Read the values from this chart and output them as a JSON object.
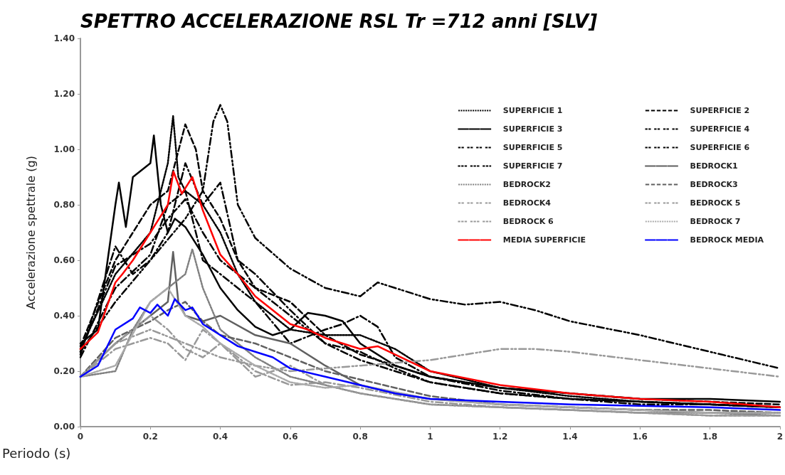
{
  "chart_data": {
    "type": "line",
    "title": "SPETTRO ACCELERAZIONE RSL Tr =712 anni [SLV]",
    "xlabel": "Periodo (s)",
    "ylabel": "Accelerazione spettrale (g)",
    "xlim": [
      0,
      2
    ],
    "xticks": [
      0,
      0.2,
      0.4,
      0.6,
      0.8,
      1,
      1.2,
      1.4,
      1.6,
      1.8,
      2
    ],
    "ylim": [
      0,
      1.4
    ],
    "yticks": [
      {
        "value": 0,
        "label": "0.00"
      },
      {
        "value": 0.2,
        "label": "0.20"
      },
      {
        "value": 0.4,
        "label": "0.40"
      },
      {
        "value": 0.6,
        "label": "0.60"
      },
      {
        "value": 0.8,
        "label": "0.80"
      },
      {
        "value": 1,
        "label": "1.00"
      },
      {
        "value": 1.2,
        "label": "1.20"
      },
      {
        "value": 1.4,
        "label": "1.40"
      }
    ],
    "grid": false,
    "legend": "top right",
    "marker": "none",
    "series": [
      {
        "name": "SUPERFICIE 1",
        "color": "#000000",
        "line_style": "dotted",
        "x": [
          0,
          0.1,
          0.2,
          0.25,
          0.265,
          0.28,
          0.3,
          0.35,
          0.4,
          0.45,
          0.5,
          0.6,
          0.7,
          0.8,
          0.9,
          1,
          1.2,
          1.4,
          1.6,
          1.8,
          2
        ],
        "values": [
          0.28,
          0.55,
          0.7,
          0.95,
          1.12,
          0.9,
          0.85,
          0.8,
          0.7,
          0.55,
          0.45,
          0.35,
          0.33,
          0.33,
          0.28,
          0.2,
          0.14,
          0.11,
          0.09,
          0.08,
          0.07
        ]
      },
      {
        "name": "SUPERFICIE 2",
        "color": "#000000",
        "line_style": "dashed",
        "x": [
          0,
          0.1,
          0.2,
          0.25,
          0.3,
          0.33,
          0.35,
          0.4,
          0.45,
          0.5,
          0.6,
          0.7,
          0.8,
          0.9,
          1,
          1.2,
          1.4,
          1.6,
          1.8,
          2
        ],
        "values": [
          0.29,
          0.6,
          0.8,
          0.85,
          1.09,
          1.0,
          0.85,
          0.75,
          0.6,
          0.5,
          0.45,
          0.33,
          0.26,
          0.22,
          0.18,
          0.14,
          0.12,
          0.1,
          0.09,
          0.08
        ]
      },
      {
        "name": "SUPERFICIE 3",
        "color": "#000000",
        "line_style": "solid",
        "x": [
          0,
          0.05,
          0.1,
          0.11,
          0.13,
          0.15,
          0.2,
          0.21,
          0.23,
          0.25,
          0.27,
          0.3,
          0.35,
          0.4,
          0.45,
          0.5,
          0.55,
          0.6,
          0.65,
          0.7,
          0.75,
          0.8,
          0.9,
          1,
          1.2,
          1.4,
          1.6,
          1.8,
          2
        ],
        "values": [
          0.3,
          0.35,
          0.8,
          0.88,
          0.72,
          0.9,
          0.95,
          1.05,
          0.8,
          0.7,
          0.75,
          0.72,
          0.62,
          0.5,
          0.42,
          0.36,
          0.33,
          0.35,
          0.41,
          0.4,
          0.38,
          0.3,
          0.22,
          0.18,
          0.14,
          0.12,
          0.1,
          0.1,
          0.09
        ]
      },
      {
        "name": "SUPERFICIE 4",
        "color": "#000000",
        "line_style": "dashdot",
        "x": [
          0,
          0.1,
          0.15,
          0.2,
          0.25,
          0.3,
          0.35,
          0.4,
          0.45,
          0.5,
          0.6,
          0.7,
          0.8,
          0.9,
          1,
          1.2,
          1.4,
          1.6,
          1.8,
          2
        ],
        "values": [
          0.26,
          0.65,
          0.55,
          0.6,
          0.7,
          0.95,
          0.8,
          0.88,
          0.6,
          0.55,
          0.42,
          0.3,
          0.27,
          0.21,
          0.16,
          0.12,
          0.1,
          0.09,
          0.08,
          0.07
        ]
      },
      {
        "name": "SUPERFICIE 5",
        "color": "#000000",
        "line_style": "dashdot",
        "x": [
          0,
          0.1,
          0.2,
          0.25,
          0.3,
          0.35,
          0.4,
          0.5,
          0.6,
          0.7,
          0.75,
          0.8,
          0.85,
          0.9,
          1,
          1.2,
          1.4,
          1.6,
          1.8,
          2
        ],
        "values": [
          0.25,
          0.5,
          0.62,
          0.8,
          0.85,
          0.6,
          0.55,
          0.45,
          0.3,
          0.35,
          0.37,
          0.4,
          0.36,
          0.25,
          0.18,
          0.13,
          0.1,
          0.09,
          0.08,
          0.07
        ]
      },
      {
        "name": "SUPERFICIE 6",
        "color": "#000000",
        "line_style": "dashdot",
        "x": [
          0,
          0.1,
          0.2,
          0.25,
          0.3,
          0.35,
          0.4,
          0.5,
          0.6,
          0.7,
          0.8,
          0.9,
          1,
          1.2,
          1.4,
          1.6,
          1.8,
          2
        ],
        "values": [
          0.27,
          0.58,
          0.66,
          0.75,
          0.82,
          0.7,
          0.6,
          0.5,
          0.4,
          0.3,
          0.24,
          0.2,
          0.16,
          0.12,
          0.1,
          0.08,
          0.08,
          0.07
        ]
      },
      {
        "name": "SUPERFICIE 7",
        "color": "#000000",
        "line_style": "dashdotdot",
        "x": [
          0,
          0.1,
          0.2,
          0.3,
          0.35,
          0.38,
          0.4,
          0.42,
          0.45,
          0.5,
          0.6,
          0.7,
          0.8,
          0.85,
          0.9,
          1,
          1.1,
          1.2,
          1.3,
          1.4,
          1.6,
          1.8,
          2
        ],
        "values": [
          0.27,
          0.45,
          0.6,
          0.75,
          0.85,
          1.1,
          1.16,
          1.1,
          0.8,
          0.68,
          0.57,
          0.5,
          0.47,
          0.52,
          0.5,
          0.46,
          0.44,
          0.45,
          0.42,
          0.38,
          0.33,
          0.27,
          0.21
        ]
      },
      {
        "name": "BEDROCK1",
        "color": "#606060",
        "line_style": "solid",
        "x": [
          0,
          0.1,
          0.2,
          0.25,
          0.265,
          0.28,
          0.3,
          0.35,
          0.4,
          0.5,
          0.6,
          0.7,
          0.8,
          0.9,
          1,
          1.2,
          1.4,
          1.6,
          1.8,
          2
        ],
        "values": [
          0.18,
          0.3,
          0.4,
          0.45,
          0.63,
          0.45,
          0.4,
          0.38,
          0.4,
          0.33,
          0.3,
          0.22,
          0.15,
          0.12,
          0.1,
          0.08,
          0.07,
          0.06,
          0.05,
          0.05
        ]
      },
      {
        "name": "BEDROCK2",
        "color": "#808080",
        "line_style": "dotted",
        "x": [
          0,
          0.1,
          0.15,
          0.2,
          0.25,
          0.3,
          0.32,
          0.35,
          0.4,
          0.5,
          0.6,
          0.7,
          0.8,
          1,
          1.2,
          1.4,
          1.6,
          1.8,
          2
        ],
        "values": [
          0.18,
          0.2,
          0.35,
          0.45,
          0.5,
          0.55,
          0.64,
          0.5,
          0.35,
          0.25,
          0.18,
          0.15,
          0.12,
          0.08,
          0.07,
          0.06,
          0.05,
          0.05,
          0.04
        ]
      },
      {
        "name": "BEDROCK3",
        "color": "#606060",
        "line_style": "dashed",
        "x": [
          0,
          0.1,
          0.2,
          0.25,
          0.3,
          0.35,
          0.4,
          0.5,
          0.6,
          0.7,
          0.8,
          1,
          1.2,
          1.4,
          1.6,
          1.8,
          2
        ],
        "values": [
          0.18,
          0.32,
          0.38,
          0.42,
          0.45,
          0.38,
          0.33,
          0.3,
          0.25,
          0.2,
          0.17,
          0.11,
          0.08,
          0.07,
          0.06,
          0.06,
          0.05
        ]
      },
      {
        "name": "BEDROCK4",
        "color": "#999999",
        "line_style": "dashdot",
        "x": [
          0,
          0.1,
          0.2,
          0.25,
          0.3,
          0.35,
          0.4,
          0.5,
          0.6,
          0.7,
          0.8,
          1,
          1.2,
          1.4,
          1.6,
          1.8,
          2
        ],
        "values": [
          0.18,
          0.28,
          0.32,
          0.3,
          0.24,
          0.35,
          0.3,
          0.18,
          0.22,
          0.15,
          0.12,
          0.08,
          0.07,
          0.06,
          0.05,
          0.04,
          0.04
        ]
      },
      {
        "name": "BEDROCK 5",
        "color": "#999999",
        "line_style": "dashdot",
        "x": [
          0,
          0.1,
          0.2,
          0.25,
          0.3,
          0.35,
          0.4,
          0.5,
          0.6,
          0.7,
          0.8,
          1,
          1.2,
          1.4,
          1.6,
          1.8,
          2
        ],
        "values": [
          0.18,
          0.3,
          0.4,
          0.35,
          0.28,
          0.25,
          0.3,
          0.2,
          0.15,
          0.16,
          0.14,
          0.09,
          0.07,
          0.06,
          0.05,
          0.04,
          0.04
        ]
      },
      {
        "name": "BEDROCK 6",
        "color": "#999999",
        "line_style": "dashdotdot",
        "x": [
          0,
          0.1,
          0.2,
          0.3,
          0.4,
          0.5,
          0.6,
          0.8,
          1,
          1.2,
          1.3,
          1.4,
          1.6,
          1.8,
          2
        ],
        "values": [
          0.18,
          0.3,
          0.35,
          0.3,
          0.25,
          0.22,
          0.2,
          0.22,
          0.24,
          0.28,
          0.28,
          0.27,
          0.24,
          0.21,
          0.18
        ]
      },
      {
        "name": "BEDROCK 7",
        "color": "#aaaaaa",
        "line_style": "dotted",
        "x": [
          0,
          0.1,
          0.2,
          0.25,
          0.3,
          0.35,
          0.4,
          0.5,
          0.6,
          0.7,
          0.8,
          1,
          1.2,
          1.4,
          1.6,
          1.8,
          2
        ],
        "values": [
          0.18,
          0.22,
          0.45,
          0.5,
          0.4,
          0.36,
          0.3,
          0.22,
          0.16,
          0.14,
          0.15,
          0.1,
          0.08,
          0.07,
          0.06,
          0.05,
          0.05
        ]
      },
      {
        "name": "MEDIA SUPERFICIE",
        "color": "#ff0000",
        "line_style": "solid",
        "x": [
          0,
          0.05,
          0.1,
          0.12,
          0.15,
          0.2,
          0.22,
          0.25,
          0.266,
          0.29,
          0.32,
          0.35,
          0.4,
          0.45,
          0.5,
          0.55,
          0.6,
          0.65,
          0.7,
          0.8,
          0.85,
          0.9,
          1,
          1.2,
          1.4,
          1.6,
          1.8,
          2
        ],
        "values": [
          0.28,
          0.34,
          0.52,
          0.55,
          0.6,
          0.7,
          0.74,
          0.8,
          0.92,
          0.84,
          0.9,
          0.78,
          0.62,
          0.55,
          0.47,
          0.42,
          0.37,
          0.35,
          0.32,
          0.28,
          0.29,
          0.26,
          0.2,
          0.15,
          0.12,
          0.1,
          0.09,
          0.07
        ]
      },
      {
        "name": "BEDROCK MEDIA",
        "color": "#0000ff",
        "line_style": "solid",
        "x": [
          0,
          0.05,
          0.1,
          0.15,
          0.17,
          0.2,
          0.22,
          0.25,
          0.27,
          0.3,
          0.32,
          0.35,
          0.4,
          0.45,
          0.5,
          0.55,
          0.6,
          0.7,
          0.8,
          0.9,
          1,
          1.2,
          1.4,
          1.6,
          1.8,
          2
        ],
        "values": [
          0.18,
          0.22,
          0.35,
          0.39,
          0.43,
          0.41,
          0.44,
          0.4,
          0.46,
          0.42,
          0.43,
          0.37,
          0.33,
          0.29,
          0.27,
          0.25,
          0.21,
          0.18,
          0.15,
          0.12,
          0.1,
          0.09,
          0.08,
          0.075,
          0.07,
          0.06
        ]
      }
    ]
  }
}
